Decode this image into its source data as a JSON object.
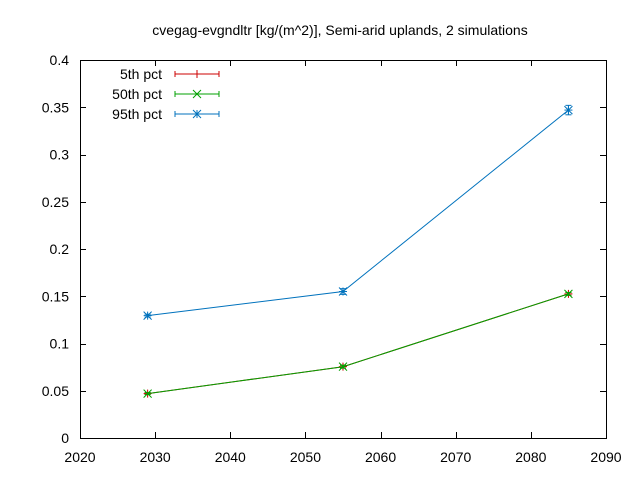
{
  "chart_data": {
    "type": "line",
    "title": "cvegag-evgndltr [kg/(m^2)], Semi-arid uplands, 2 simulations",
    "xlabel": "",
    "ylabel": "",
    "xlim": [
      2020,
      2090
    ],
    "ylim": [
      0,
      0.4
    ],
    "xticks": [
      "2020",
      "2030",
      "2040",
      "2050",
      "2060",
      "2070",
      "2080",
      "2090"
    ],
    "yticks": [
      "0",
      "0.05",
      "0.1",
      "0.15",
      "0.2",
      "0.25",
      "0.3",
      "0.35",
      "0.4"
    ],
    "x": [
      2029,
      2055,
      2085
    ],
    "legend_position": "top-left",
    "grid": false,
    "series": [
      {
        "name": "5th pct",
        "color": "#cc0000",
        "marker": "plus",
        "values": [
          0.047,
          0.0755,
          0.1525
        ],
        "errors": [
          0.001,
          0.0015,
          0.0015
        ]
      },
      {
        "name": "50th pct",
        "color": "#00a000",
        "marker": "cross",
        "values": [
          0.047,
          0.0755,
          0.1525
        ],
        "errors": [
          0.001,
          0.0015,
          0.0015
        ]
      },
      {
        "name": "95th pct",
        "color": "#0072bd",
        "marker": "star",
        "values": [
          0.1295,
          0.155,
          0.347
        ],
        "errors": [
          0.0015,
          0.003,
          0.005
        ]
      }
    ]
  }
}
